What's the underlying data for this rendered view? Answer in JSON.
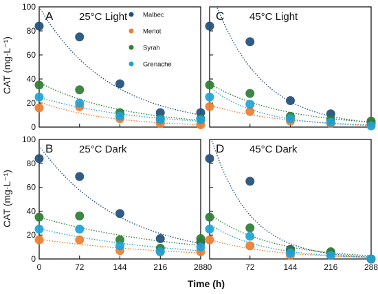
{
  "chart_data": [
    {
      "type": "scatter",
      "panel": "A",
      "title": "25°C Light",
      "x": [
        0,
        72,
        144,
        216,
        288
      ],
      "ylim": [
        0,
        100
      ],
      "xlim": [
        0,
        288
      ],
      "series": [
        {
          "name": "Malbec",
          "values": [
            84,
            75,
            36,
            12,
            12
          ],
          "color": "#1f4e79"
        },
        {
          "name": "Merlot",
          "values": [
            16,
            17,
            7,
            3,
            2
          ],
          "color": "#ed7d31"
        },
        {
          "name": "Syrah",
          "values": [
            35,
            31,
            12,
            7,
            7
          ],
          "color": "#2e7d32"
        },
        {
          "name": "Grenache",
          "values": [
            25,
            20,
            9,
            6,
            6
          ],
          "color": "#1ea2d8"
        }
      ]
    },
    {
      "type": "scatter",
      "panel": "C",
      "title": "45°C Light",
      "x": [
        0,
        72,
        144,
        216,
        288
      ],
      "ylim": [
        0,
        100
      ],
      "xlim": [
        0,
        288
      ],
      "series": [
        {
          "name": "Malbec",
          "values": [
            84,
            71,
            22,
            11,
            3
          ],
          "color": "#1f4e79"
        },
        {
          "name": "Merlot",
          "values": [
            17,
            13,
            5,
            3,
            2
          ],
          "color": "#ed7d31"
        },
        {
          "name": "Syrah",
          "values": [
            35,
            28,
            9,
            6,
            5
          ],
          "color": "#2e7d32"
        },
        {
          "name": "Grenache",
          "values": [
            25,
            19,
            7,
            4,
            1
          ],
          "color": "#1ea2d8"
        }
      ]
    },
    {
      "type": "scatter",
      "panel": "B",
      "title": "25°C Dark",
      "x": [
        0,
        72,
        144,
        216,
        288
      ],
      "ylim": [
        0,
        100
      ],
      "xlim": [
        0,
        288
      ],
      "series": [
        {
          "name": "Malbec",
          "values": [
            84,
            69,
            38,
            17,
            14
          ],
          "color": "#1f4e79"
        },
        {
          "name": "Merlot",
          "values": [
            16,
            16,
            7,
            6,
            6
          ],
          "color": "#ed7d31"
        },
        {
          "name": "Syrah",
          "values": [
            35,
            36,
            16,
            9,
            17
          ],
          "color": "#2e7d32"
        },
        {
          "name": "Grenache",
          "values": [
            25,
            25,
            11,
            6,
            10
          ],
          "color": "#1ea2d8"
        }
      ]
    },
    {
      "type": "scatter",
      "panel": "D",
      "title": "45°C Dark",
      "x": [
        0,
        72,
        144,
        216,
        288
      ],
      "ylim": [
        0,
        100
      ],
      "xlim": [
        0,
        288
      ],
      "series": [
        {
          "name": "Malbec",
          "values": [
            84,
            65,
            8,
            5,
            0
          ],
          "color": "#1f4e79"
        },
        {
          "name": "Merlot",
          "values": [
            16,
            11,
            3,
            3,
            0
          ],
          "color": "#ed7d31"
        },
        {
          "name": "Syrah",
          "values": [
            35,
            26,
            7,
            6,
            0
          ],
          "color": "#2e7d32"
        },
        {
          "name": "Grenache",
          "values": [
            25,
            19,
            5,
            3,
            0
          ],
          "color": "#1ea2d8"
        }
      ]
    }
  ],
  "axes": {
    "ylabel": "CAT (mg·L⁻¹)",
    "xlabel": "Time (h)",
    "yticks": [
      "0",
      "20",
      "40",
      "60",
      "80",
      "100"
    ],
    "xticks": [
      "0",
      "72",
      "144",
      "216",
      "288"
    ]
  },
  "legend": {
    "placement": "inside panel A, top-right",
    "items": [
      "Malbec",
      "Merlot",
      "Syrah",
      "Grenache"
    ]
  }
}
